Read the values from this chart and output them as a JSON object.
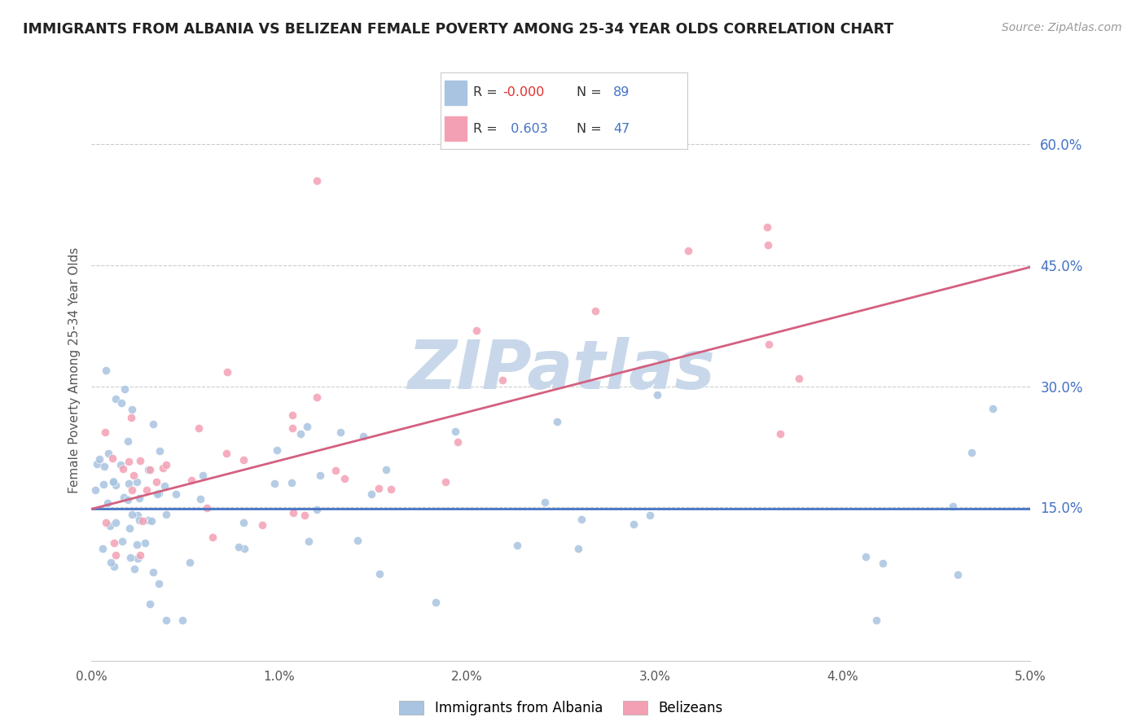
{
  "title": "IMMIGRANTS FROM ALBANIA VS BELIZEAN FEMALE POVERTY AMONG 25-34 YEAR OLDS CORRELATION CHART",
  "source": "Source: ZipAtlas.com",
  "ylabel": "Female Poverty Among 25-34 Year Olds",
  "xlim": [
    0.0,
    0.05
  ],
  "ylim": [
    -0.04,
    0.68
  ],
  "yticks": [
    0.15,
    0.3,
    0.45,
    0.6
  ],
  "ytick_labels": [
    "15.0%",
    "30.0%",
    "45.0%",
    "60.0%"
  ],
  "xticks": [
    0.0,
    0.01,
    0.02,
    0.03,
    0.04,
    0.05
  ],
  "xtick_labels": [
    "0.0%",
    "1.0%",
    "2.0%",
    "3.0%",
    "4.0%",
    "5.0%"
  ],
  "color_albania": "#a8c4e0",
  "color_belize": "#f4a0b4",
  "trendline_albania": "#4472c4",
  "trendline_belize": "#d46080",
  "watermark": "ZIPatlas",
  "watermark_color": "#c8d8ea",
  "background_color": "#ffffff",
  "legend_label1": "Immigrants from Albania",
  "legend_label2": "Belizeans",
  "alb_trend_y0": 0.148,
  "alb_trend_y1": 0.148,
  "bel_trend_y0": 0.148,
  "bel_trend_y1": 0.448
}
